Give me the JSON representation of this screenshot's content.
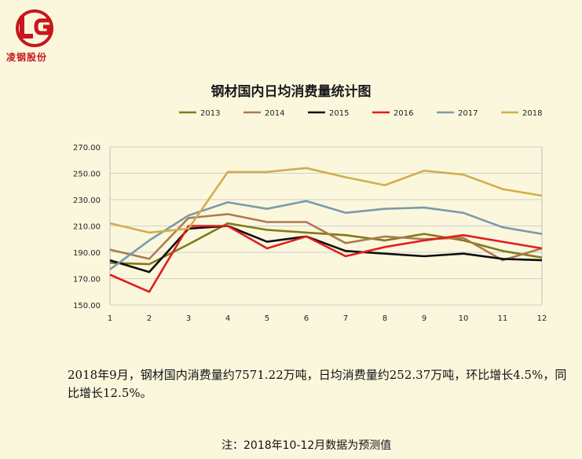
{
  "logo": {
    "mark": "LG",
    "text": "凌钢股份",
    "color": "#c8161d"
  },
  "chart_data": {
    "type": "line",
    "title": "钢材国内日均消费量统计图",
    "xlabel": "",
    "ylabel": "",
    "x": [
      "1",
      "2",
      "3",
      "4",
      "5",
      "6",
      "7",
      "8",
      "9",
      "10",
      "11",
      "12"
    ],
    "ylim": [
      150,
      270
    ],
    "yticks": [
      "150.00",
      "170.00",
      "190.00",
      "210.00",
      "230.00",
      "250.00",
      "270.00"
    ],
    "grid": true,
    "legend_position": "top",
    "series": [
      {
        "name": "2013",
        "color": "#807b19",
        "values": [
          182,
          181,
          196,
          212,
          207,
          205,
          203,
          199,
          204,
          199,
          191,
          186
        ]
      },
      {
        "name": "2014",
        "color": "#ac7a52",
        "values": [
          192,
          185,
          216,
          219,
          213,
          213,
          197,
          202,
          200,
          201,
          184,
          193
        ]
      },
      {
        "name": "2015",
        "color": "#0e0e0e",
        "values": [
          184,
          175,
          208,
          210,
          198,
          202,
          191,
          189,
          187,
          189,
          185,
          184
        ]
      },
      {
        "name": "2016",
        "color": "#e11d1d",
        "values": [
          173,
          160,
          210,
          210,
          193,
          202,
          187,
          194,
          199,
          203,
          198,
          193
        ]
      },
      {
        "name": "2017",
        "color": "#7b9aad",
        "values": [
          177,
          199,
          218,
          228,
          223,
          229,
          220,
          223,
          224,
          220,
          209,
          204
        ]
      },
      {
        "name": "2018",
        "color": "#d3ad4c",
        "values": [
          212,
          205,
          208,
          251,
          251,
          254,
          247,
          241,
          252,
          249,
          238,
          233
        ]
      }
    ]
  },
  "summary_text": "2018年9月，钢材国内消费量约7571.22万吨，日均消费量约252.37万吨，环比增长4.5%，同比增长12.5%。",
  "note": "注：2018年10-12月数据为预测值"
}
